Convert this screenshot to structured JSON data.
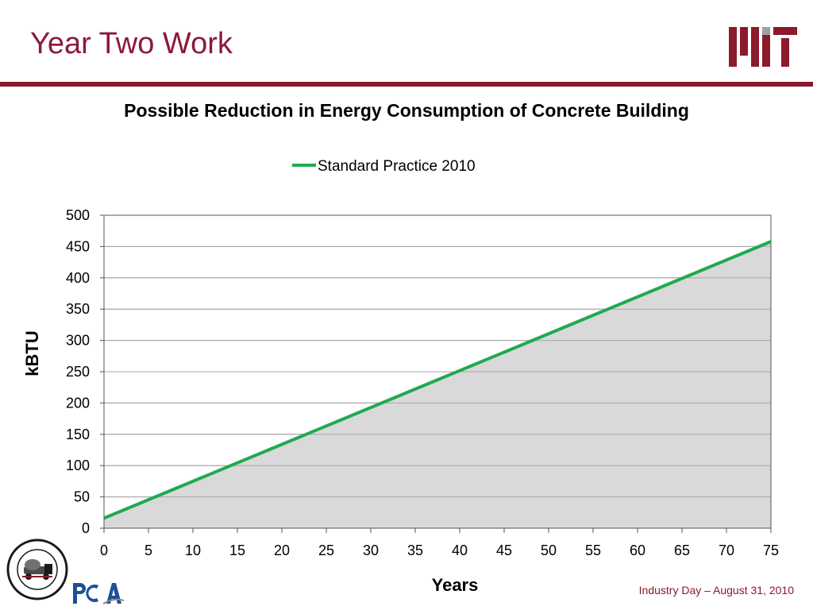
{
  "slide": {
    "title": "Year Two Work",
    "footer": "Industry Day – August 31, 2010",
    "accent_color": "#8b1a2b"
  },
  "logos": {
    "top_right": "mit-logo",
    "bottom_left_seal": "rmc-research-education-foundation-seal",
    "bottom_left_brand": "pca-logo"
  },
  "chart_data": {
    "type": "area",
    "title": "Possible Reduction in Energy Consumption of Concrete Building",
    "xlabel": "Years",
    "ylabel": "kBTU",
    "xlim": [
      0,
      75
    ],
    "ylim": [
      0,
      500
    ],
    "x_ticks": [
      0,
      5,
      10,
      15,
      20,
      25,
      30,
      35,
      40,
      45,
      50,
      55,
      60,
      65,
      70,
      75
    ],
    "y_ticks": [
      0,
      50,
      100,
      150,
      200,
      250,
      300,
      350,
      400,
      450,
      500
    ],
    "grid": true,
    "legend_position": "top-center",
    "fill_color": "#d9d9d9",
    "series": [
      {
        "name": "Standard Practice 2010",
        "color": "#1faa50",
        "x": [
          0,
          75
        ],
        "y": [
          16,
          458
        ]
      }
    ]
  }
}
